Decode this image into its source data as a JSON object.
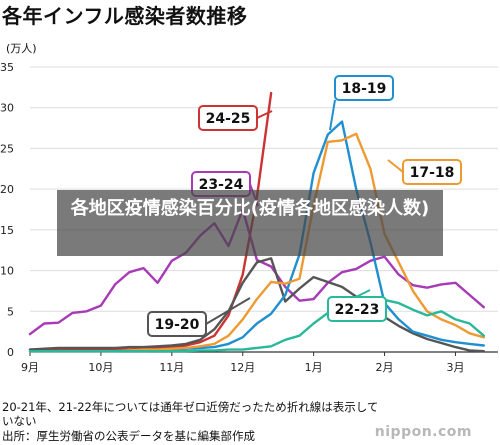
{
  "title": "各年インフル感染者数推移",
  "unit_label": "(万人)",
  "footnote": {
    "line1": "20-21年、21-22年については通年ゼロ近傍だったため折れ線は表示して",
    "line2": "いない",
    "line3": "出所：厚生労働省の公表データを基に編集部作成"
  },
  "overlay_text": "各地区疫情感染百分比(疫情各地区感染人数)",
  "watermark": "nippon.com",
  "colors": {
    "s24_25": "#cc3333",
    "s23_24": "#a83ab8",
    "s19_20": "#555555",
    "s18_19": "#1f8fd0",
    "s17_18": "#ee9a33",
    "s22_23": "#2ab89a",
    "grid": "#dddddd"
  },
  "chart_data": {
    "type": "line",
    "title": "各年インフル感染者数推移",
    "ylabel": "(万人)",
    "ylim": [
      0,
      35
    ],
    "yticks": [
      "0",
      "5",
      "10",
      "15",
      "20",
      "25",
      "30",
      "35"
    ],
    "x_tick_labels": [
      "9月",
      "10月",
      "11月",
      "12月",
      "1月",
      "2月",
      "3月"
    ],
    "x_tick_weeks": [
      0,
      5,
      10,
      15,
      20,
      25,
      30
    ],
    "grid": "horizontal",
    "legend": "callout labels",
    "series": [
      {
        "name": "24-25",
        "color_key": "s24_25",
        "weeks": [
          0,
          1,
          2,
          3,
          4,
          5,
          6,
          7,
          8,
          9,
          10,
          11,
          12,
          13,
          14,
          15,
          16,
          17
        ],
        "values": [
          0.3,
          0.3,
          0.3,
          0.3,
          0.3,
          0.3,
          0.3,
          0.3,
          0.4,
          0.5,
          0.6,
          0.8,
          1.2,
          2.0,
          4.5,
          9.5,
          19.0,
          31.8
        ]
      },
      {
        "name": "23-24",
        "color_key": "s23_24",
        "weeks": [
          0,
          1,
          2,
          3,
          4,
          5,
          6,
          7,
          8,
          9,
          10,
          11,
          12,
          13,
          14,
          15,
          16,
          17,
          18,
          19,
          20,
          21,
          22,
          23,
          24,
          25,
          26,
          27,
          28,
          29,
          30,
          31,
          32
        ],
        "values": [
          2.2,
          3.5,
          3.6,
          4.8,
          5.0,
          5.7,
          8.3,
          9.8,
          10.3,
          8.5,
          11.2,
          12.2,
          14.3,
          15.8,
          13.0,
          17.5,
          11.3,
          10.5,
          8.0,
          6.3,
          6.5,
          8.5,
          9.8,
          10.2,
          11.2,
          11.7,
          9.5,
          8.2,
          7.9,
          8.3,
          8.5,
          7.0,
          5.5
        ]
      },
      {
        "name": "19-20",
        "color_key": "s19_20",
        "weeks": [
          0,
          1,
          2,
          3,
          4,
          5,
          6,
          7,
          8,
          9,
          10,
          11,
          12,
          13,
          14,
          15,
          16,
          17,
          18,
          19,
          20,
          21,
          22,
          23,
          24,
          25,
          26,
          27,
          28,
          29,
          30,
          31,
          32
        ],
        "values": [
          0.3,
          0.4,
          0.5,
          0.5,
          0.5,
          0.5,
          0.5,
          0.6,
          0.6,
          0.7,
          0.8,
          1.0,
          1.5,
          2.8,
          5.0,
          8.5,
          11.0,
          11.5,
          6.2,
          7.8,
          9.2,
          8.6,
          8.0,
          6.8,
          5.5,
          4.3,
          3.2,
          2.3,
          1.6,
          1.1,
          0.6,
          0.2,
          0.1
        ]
      },
      {
        "name": "18-19",
        "color_key": "s18_19",
        "weeks": [
          0,
          1,
          2,
          3,
          4,
          5,
          6,
          7,
          8,
          9,
          10,
          11,
          12,
          13,
          14,
          15,
          16,
          17,
          18,
          19,
          20,
          21,
          22,
          23,
          24,
          25,
          26,
          27,
          28,
          29,
          30,
          31,
          32
        ],
        "values": [
          0.1,
          0.1,
          0.1,
          0.1,
          0.1,
          0.1,
          0.1,
          0.1,
          0.1,
          0.2,
          0.3,
          0.4,
          0.5,
          0.6,
          1.0,
          1.8,
          3.5,
          4.7,
          7.0,
          12.0,
          22.0,
          26.7,
          28.3,
          20.0,
          13.5,
          6.0,
          4.0,
          2.5,
          2.0,
          1.5,
          1.2,
          1.0,
          0.8
        ]
      },
      {
        "name": "17-18",
        "color_key": "s17_18",
        "weeks": [
          0,
          1,
          2,
          3,
          4,
          5,
          6,
          7,
          8,
          9,
          10,
          11,
          12,
          13,
          14,
          15,
          16,
          17,
          18,
          19,
          20,
          21,
          22,
          23,
          24,
          25,
          26,
          27,
          28,
          29,
          30,
          31,
          32
        ],
        "values": [
          0.1,
          0.1,
          0.1,
          0.1,
          0.1,
          0.1,
          0.1,
          0.2,
          0.3,
          0.3,
          0.4,
          0.5,
          0.7,
          1.0,
          2.0,
          4.0,
          6.5,
          8.6,
          8.4,
          9.0,
          18.0,
          25.8,
          26.0,
          26.8,
          22.5,
          14.5,
          11.0,
          7.5,
          5.0,
          4.0,
          3.3,
          2.3,
          1.8
        ]
      },
      {
        "name": "22-23",
        "color_key": "s22_23",
        "weeks": [
          0,
          1,
          2,
          3,
          4,
          5,
          6,
          7,
          8,
          9,
          10,
          11,
          12,
          13,
          14,
          15,
          16,
          17,
          18,
          19,
          20,
          21,
          22,
          23,
          24,
          25,
          26,
          27,
          28,
          29,
          30,
          31,
          32
        ],
        "values": [
          0.1,
          0.1,
          0.1,
          0.1,
          0.1,
          0.1,
          0.1,
          0.1,
          0.1,
          0.1,
          0.1,
          0.1,
          0.2,
          0.2,
          0.3,
          0.3,
          0.5,
          0.7,
          1.5,
          2.0,
          3.5,
          4.8,
          5.0,
          5.6,
          6.3,
          6.4,
          6.0,
          5.2,
          4.5,
          5.0,
          4.0,
          3.5,
          2.0
        ]
      }
    ]
  }
}
